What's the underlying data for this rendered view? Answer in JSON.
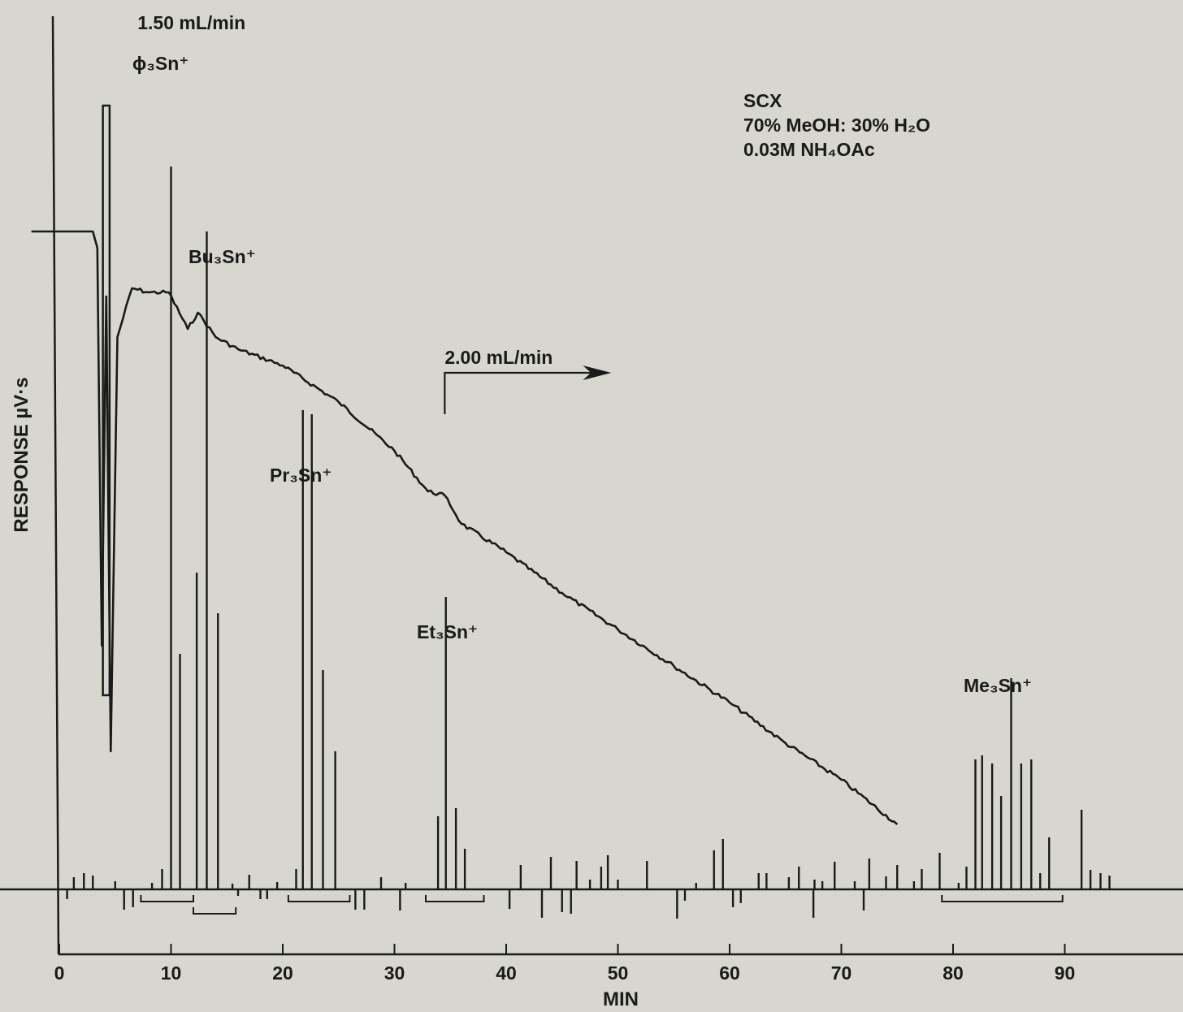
{
  "chart_data": {
    "type": "line",
    "xlabel": "MIN",
    "ylabel": "RESPONSE µV·s",
    "x_ticks": [
      0,
      10,
      20,
      30,
      40,
      50,
      60,
      70,
      80,
      90
    ],
    "xlim": [
      0,
      100
    ],
    "grid": false,
    "conditions": {
      "column": "SCX",
      "mobile_phase": "70% MeOH: 30% H₂O",
      "buffer": "0.03M NH₄OAc"
    },
    "flow_annotations": [
      {
        "label": "1.50 mL/min",
        "x": 7
      },
      {
        "label": "2.00 mL/min",
        "x": 34.5
      }
    ],
    "peak_labels": [
      {
        "label": "ϕ₃Sn⁺",
        "x": 9.6
      },
      {
        "label": "Bu₃Sn⁺",
        "x": 13.2
      },
      {
        "label": "Pr₃Sn⁺",
        "x": 22.0
      },
      {
        "label": "Et₃Sn⁺",
        "x": 34.6
      },
      {
        "label": "Me₃Sn⁺",
        "x": 84.8
      }
    ],
    "series": [
      {
        "type": "line",
        "points": [
          [
            -2.5,
            8.1
          ],
          [
            3.0,
            8.1
          ],
          [
            3.4,
            7.9
          ],
          [
            3.8,
            3.0
          ],
          [
            4.2,
            7.3
          ],
          [
            4.6,
            1.7
          ],
          [
            5.2,
            6.8
          ],
          [
            6.5,
            7.4
          ],
          [
            8.0,
            7.35
          ],
          [
            9.8,
            7.35
          ],
          [
            11.5,
            6.9
          ],
          [
            12.4,
            7.1
          ],
          [
            14.0,
            6.8
          ],
          [
            16.0,
            6.65
          ],
          [
            20.0,
            6.45
          ],
          [
            25.0,
            6.0
          ],
          [
            30.0,
            5.4
          ],
          [
            33.0,
            4.9
          ],
          [
            34.5,
            4.85
          ],
          [
            36.0,
            4.5
          ],
          [
            40.0,
            4.15
          ],
          [
            45.0,
            3.65
          ],
          [
            50.0,
            3.2
          ],
          [
            55.0,
            2.75
          ],
          [
            60.0,
            2.3
          ],
          [
            65.0,
            1.8
          ],
          [
            70.0,
            1.35
          ],
          [
            75.0,
            0.8
          ]
        ]
      },
      {
        "type": "spikes",
        "points": [
          [
            1.3,
            0.15
          ],
          [
            2.2,
            0.2
          ],
          [
            3.0,
            0.17
          ],
          [
            5.0,
            0.1
          ],
          [
            8.3,
            0.08
          ],
          [
            9.2,
            0.25
          ],
          [
            10.0,
            8.9
          ],
          [
            10.8,
            2.9
          ],
          [
            12.3,
            3.9
          ],
          [
            13.2,
            8.1
          ],
          [
            14.2,
            3.4
          ],
          [
            15.5,
            0.07
          ],
          [
            17.0,
            0.18
          ],
          [
            19.5,
            0.09
          ],
          [
            21.2,
            0.25
          ],
          [
            21.8,
            5.9
          ],
          [
            22.6,
            5.85
          ],
          [
            23.6,
            2.7
          ],
          [
            24.7,
            1.7
          ],
          [
            28.8,
            0.15
          ],
          [
            31.0,
            0.08
          ],
          [
            33.9,
            0.9
          ],
          [
            34.6,
            3.6
          ],
          [
            35.5,
            1.0
          ],
          [
            36.3,
            0.5
          ],
          [
            41.3,
            0.3
          ],
          [
            44.0,
            0.4
          ],
          [
            46.3,
            0.35
          ],
          [
            47.5,
            0.12
          ],
          [
            48.5,
            0.28
          ],
          [
            49.1,
            0.42
          ],
          [
            50.0,
            0.12
          ],
          [
            52.6,
            0.35
          ],
          [
            57.0,
            0.08
          ],
          [
            58.6,
            0.48
          ],
          [
            59.4,
            0.62
          ],
          [
            62.6,
            0.2
          ],
          [
            63.3,
            0.2
          ],
          [
            65.3,
            0.15
          ],
          [
            66.2,
            0.28
          ],
          [
            67.6,
            0.12
          ],
          [
            68.3,
            0.1
          ],
          [
            69.4,
            0.34
          ],
          [
            71.2,
            0.1
          ],
          [
            72.5,
            0.38
          ],
          [
            74.0,
            0.16
          ],
          [
            75.0,
            0.3
          ],
          [
            76.5,
            0.1
          ],
          [
            77.2,
            0.25
          ],
          [
            78.8,
            0.45
          ],
          [
            80.5,
            0.08
          ],
          [
            81.2,
            0.28
          ],
          [
            82.0,
            1.6
          ],
          [
            82.6,
            1.65
          ],
          [
            83.5,
            1.55
          ],
          [
            84.3,
            1.15
          ],
          [
            85.2,
            2.6
          ],
          [
            86.1,
            1.55
          ],
          [
            87.0,
            1.6
          ],
          [
            87.8,
            0.2
          ],
          [
            88.6,
            0.64
          ],
          [
            91.5,
            0.98
          ],
          [
            92.3,
            0.24
          ],
          [
            93.2,
            0.2
          ],
          [
            94.0,
            0.17
          ]
        ]
      },
      {
        "type": "spikes",
        "points": [
          [
            0.7,
            -0.12
          ],
          [
            5.8,
            -0.25
          ],
          [
            6.6,
            -0.22
          ],
          [
            16.0,
            -0.08
          ],
          [
            18.0,
            -0.12
          ],
          [
            18.6,
            -0.12
          ],
          [
            26.5,
            -0.25
          ],
          [
            27.3,
            -0.25
          ],
          [
            30.5,
            -0.26
          ],
          [
            40.3,
            -0.24
          ],
          [
            43.2,
            -0.35
          ],
          [
            45.0,
            -0.28
          ],
          [
            45.8,
            -0.3
          ],
          [
            55.3,
            -0.36
          ],
          [
            56.0,
            -0.14
          ],
          [
            60.3,
            -0.22
          ],
          [
            61.0,
            -0.17
          ],
          [
            67.5,
            -0.35
          ],
          [
            72.0,
            -0.26
          ]
        ]
      }
    ],
    "fraction_brackets": [
      {
        "from": 7.3,
        "to": 12.0
      },
      {
        "from": 12.0,
        "to": 15.8
      },
      {
        "from": 20.5,
        "to": 26.0
      },
      {
        "from": 32.8,
        "to": 38.0
      },
      {
        "from": 79.0,
        "to": 89.8
      }
    ],
    "colors": {
      "background": "#d8d7cf",
      "ink": "#1a1a1a"
    }
  }
}
